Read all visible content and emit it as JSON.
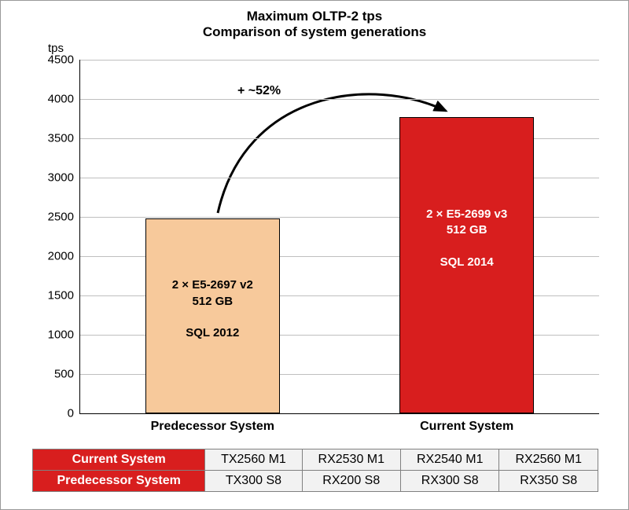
{
  "chart": {
    "type": "bar",
    "title_line1": "Maximum OLTP-2 tps",
    "title_line2": "Comparison of system generations",
    "title_fontsize": 17,
    "y_unit_label": "tps",
    "background_color": "#ffffff",
    "grid_color": "#bfbfbf",
    "axis_color": "#000000",
    "ylim": [
      0,
      4500
    ],
    "ytick_step": 500,
    "yticks": [
      0,
      500,
      1000,
      1500,
      2000,
      2500,
      3000,
      3500,
      4000,
      4500
    ],
    "label_fontsize": 15,
    "category_fontsize": 16,
    "bar_border_color": "#000000",
    "bars": [
      {
        "category": "Predecessor System",
        "value": 2480,
        "color": "#f7c99b",
        "text_color": "#000000",
        "label_line1": "2 × E5-2697 v2",
        "label_line2": "512 GB",
        "label_line3": "",
        "label_line4": "SQL 2012",
        "center_frac": 0.255,
        "width_frac": 0.26
      },
      {
        "category": "Current System",
        "value": 3770,
        "color": "#d81e1e",
        "text_color": "#ffffff",
        "label_line1": "2 × E5-2699 v3",
        "label_line2": "512 GB",
        "label_line3": "",
        "label_line4": "SQL 2014",
        "center_frac": 0.745,
        "width_frac": 0.26
      }
    ],
    "annotation": {
      "text": "+ ~52%",
      "color": "#000000",
      "fontsize": 16,
      "arrow_color": "#000000",
      "arrow_width": 3
    }
  },
  "table": {
    "header_bg": "#d81e1e",
    "header_text_color": "#ffffff",
    "cell_bg": "#f2f2f2",
    "border_color": "#808080",
    "fontsize": 16,
    "rows": [
      {
        "header": "Current System",
        "cells": [
          "TX2560 M1",
          "RX2530 M1",
          "RX2540 M1",
          "RX2560 M1"
        ]
      },
      {
        "header": "Predecessor System",
        "cells": [
          "TX300 S8",
          "RX200 S8",
          "RX300 S8",
          "RX350 S8"
        ]
      }
    ]
  }
}
